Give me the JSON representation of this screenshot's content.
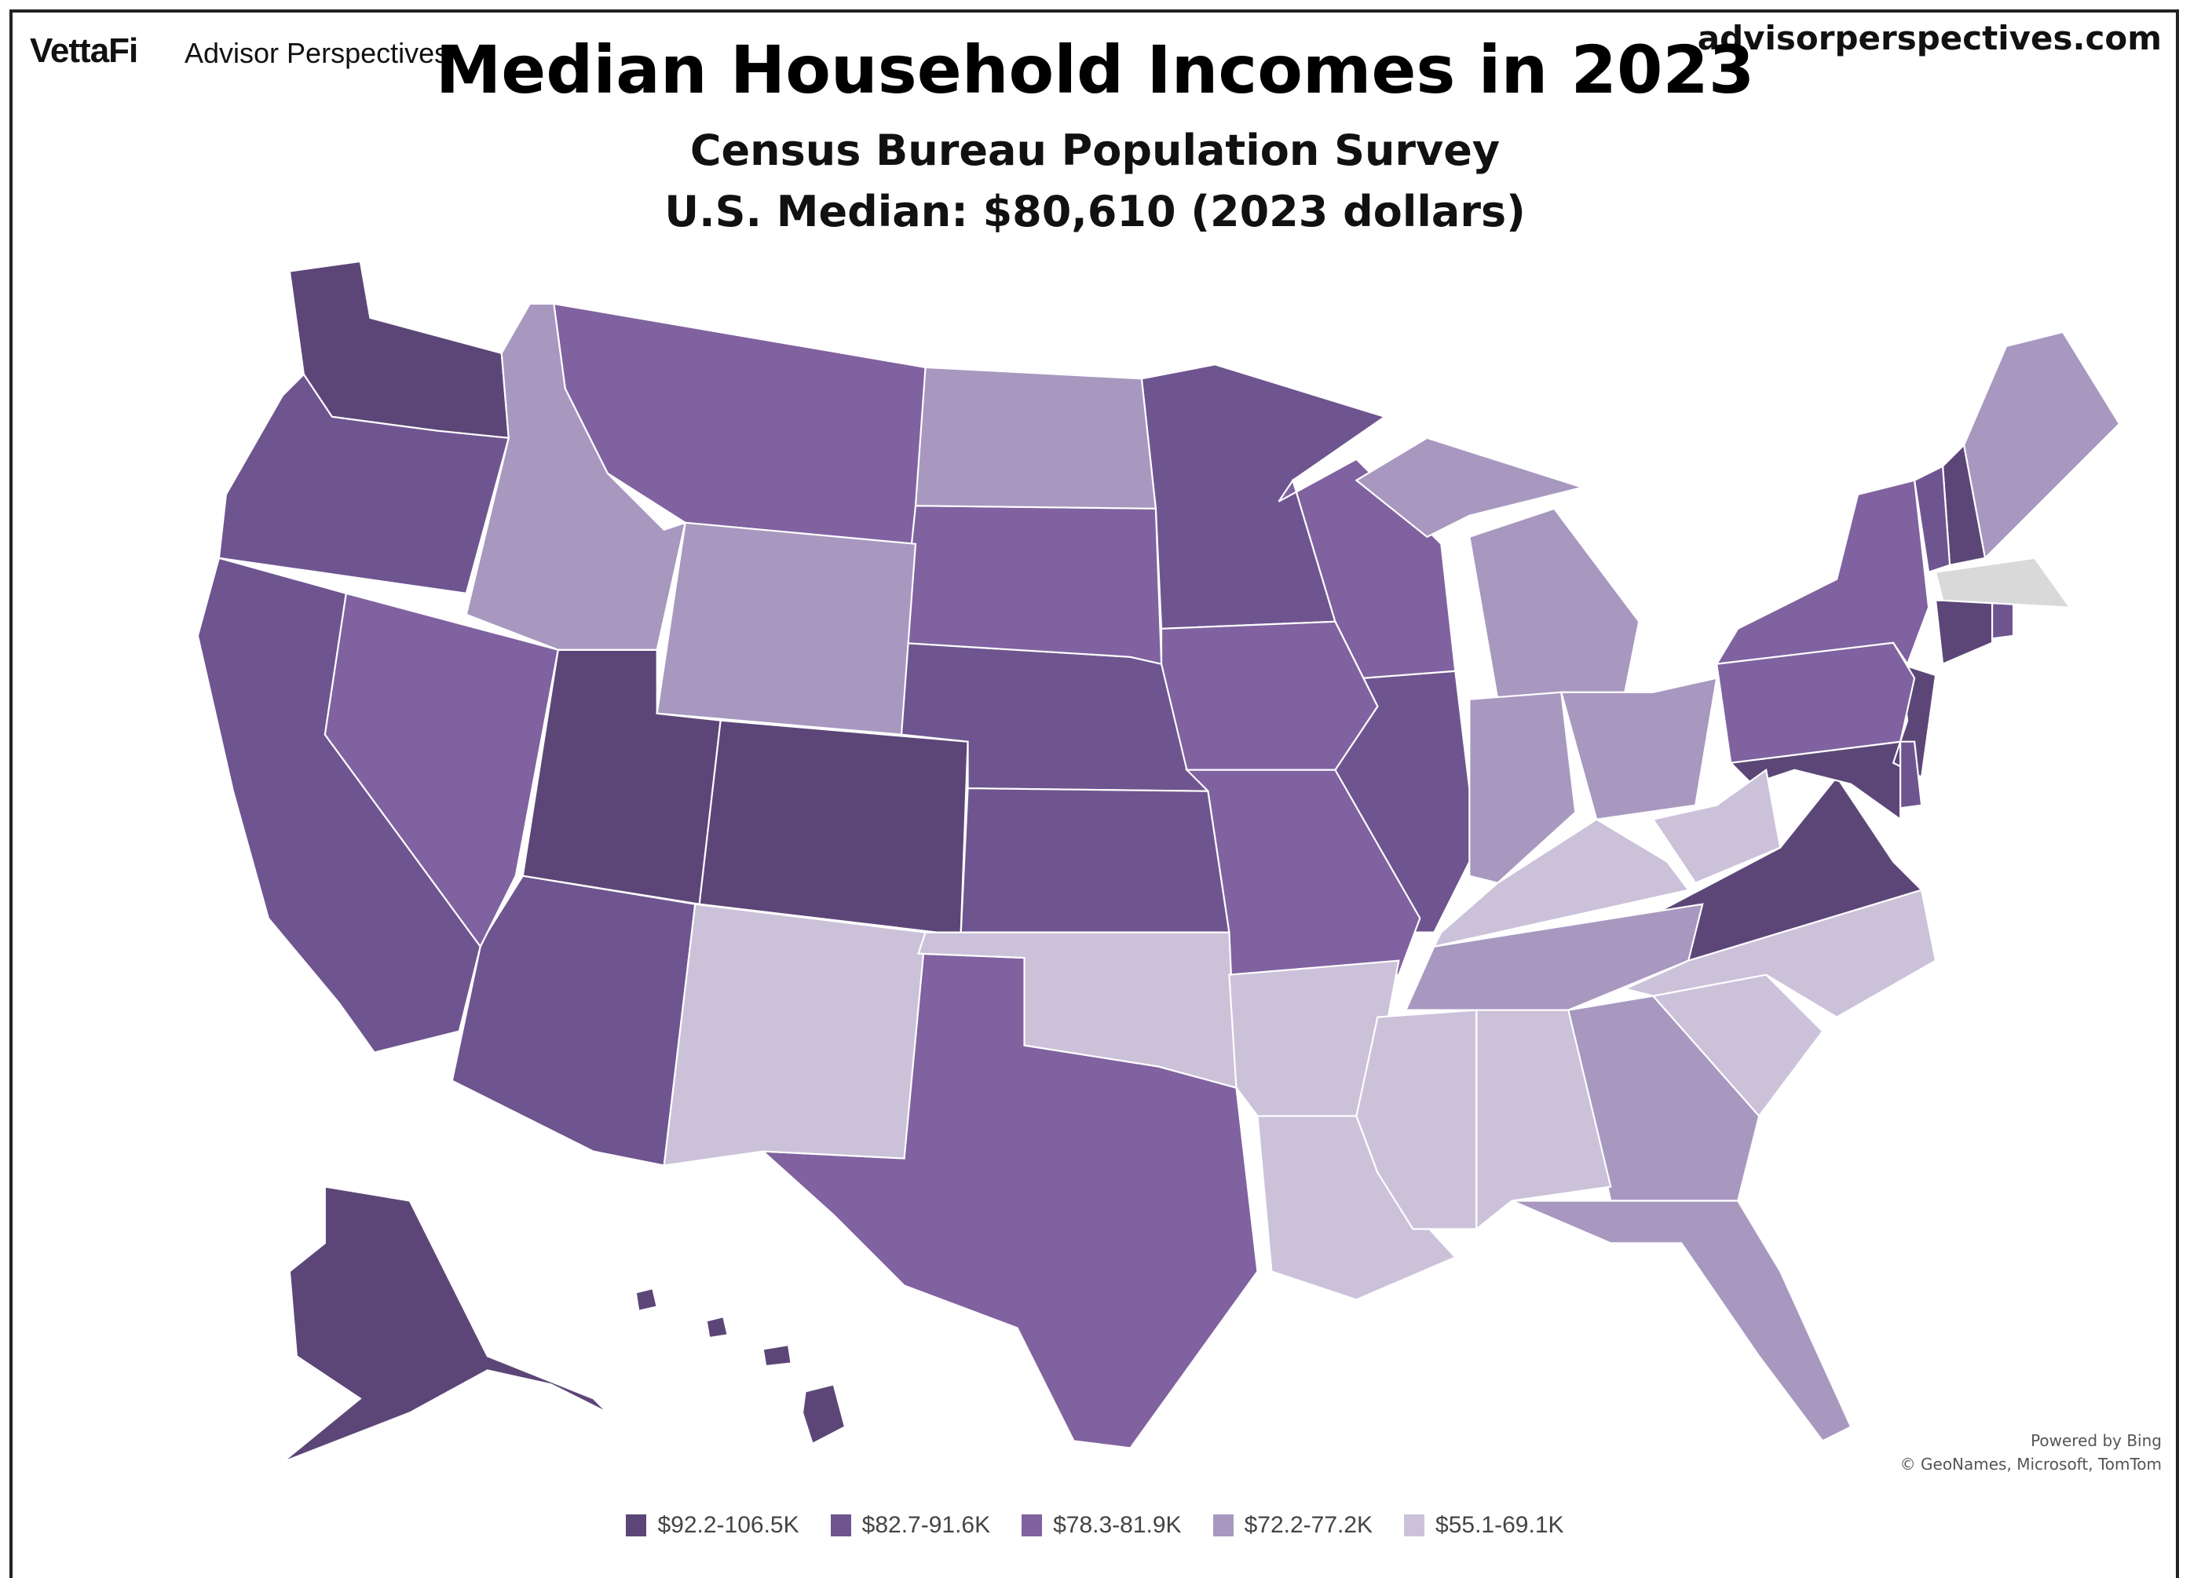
{
  "header": {
    "logo": "VettaFi",
    "brand": "Advisor Perspectives",
    "site": "advisorperspectives.com",
    "title": "Median Household Incomes in 2023",
    "subtitle": "Census Bureau Population Survey",
    "subtitle2": "U.S. Median: $80,610 (2023 dollars)"
  },
  "attribution": {
    "line1": "Powered by Bing",
    "line2": "© GeoNames, Microsoft, TomTom"
  },
  "legend": [
    {
      "label": "$92.2-106.5K",
      "color": "#5c4677"
    },
    {
      "label": "$82.7-91.6K",
      "color": "#6e5590"
    },
    {
      "label": "$78.3-81.9K",
      "color": "#8062a0"
    },
    {
      "label": "$72.2-77.2K",
      "color": "#a898c0"
    },
    {
      "label": "$55.1-69.1K",
      "color": "#cbc2da"
    }
  ],
  "no_data_color": "#d9d9d9",
  "chart_data": {
    "type": "choropleth",
    "region": "United States",
    "states": [
      {
        "state": "WA",
        "bin": 0
      },
      {
        "state": "UT",
        "bin": 0
      },
      {
        "state": "CO",
        "bin": 0
      },
      {
        "state": "VA",
        "bin": 0
      },
      {
        "state": "MD",
        "bin": 0
      },
      {
        "state": "NH",
        "bin": 0
      },
      {
        "state": "CT",
        "bin": 0
      },
      {
        "state": "AK",
        "bin": 0
      },
      {
        "state": "HI",
        "bin": 0
      },
      {
        "state": "NJ",
        "bin": 0
      },
      {
        "state": "CA",
        "bin": 1
      },
      {
        "state": "OR",
        "bin": 1
      },
      {
        "state": "AZ",
        "bin": 1
      },
      {
        "state": "NE",
        "bin": 1
      },
      {
        "state": "KS",
        "bin": 1
      },
      {
        "state": "MN",
        "bin": 1
      },
      {
        "state": "IL",
        "bin": 1
      },
      {
        "state": "VT",
        "bin": 1
      },
      {
        "state": "DE",
        "bin": 1
      },
      {
        "state": "RI",
        "bin": 1
      },
      {
        "state": "MT",
        "bin": 2
      },
      {
        "state": "NV",
        "bin": 2
      },
      {
        "state": "SD",
        "bin": 2
      },
      {
        "state": "WI",
        "bin": 2
      },
      {
        "state": "IA",
        "bin": 2
      },
      {
        "state": "MO",
        "bin": 2
      },
      {
        "state": "TX",
        "bin": 2
      },
      {
        "state": "NY",
        "bin": 2
      },
      {
        "state": "PA",
        "bin": 2
      },
      {
        "state": "ID",
        "bin": 3
      },
      {
        "state": "WY",
        "bin": 3
      },
      {
        "state": "ND",
        "bin": 3
      },
      {
        "state": "MI",
        "bin": 3
      },
      {
        "state": "IN",
        "bin": 3
      },
      {
        "state": "OH",
        "bin": 3
      },
      {
        "state": "TN",
        "bin": 3
      },
      {
        "state": "GA",
        "bin": 3
      },
      {
        "state": "FL",
        "bin": 3
      },
      {
        "state": "ME",
        "bin": 3
      },
      {
        "state": "NM",
        "bin": 4
      },
      {
        "state": "OK",
        "bin": 4
      },
      {
        "state": "AR",
        "bin": 4
      },
      {
        "state": "LA",
        "bin": 4
      },
      {
        "state": "MS",
        "bin": 4
      },
      {
        "state": "AL",
        "bin": 4
      },
      {
        "state": "SC",
        "bin": 4
      },
      {
        "state": "NC",
        "bin": 4
      },
      {
        "state": "KY",
        "bin": 4
      },
      {
        "state": "WV",
        "bin": 4
      },
      {
        "state": "MA",
        "bin": null
      }
    ]
  }
}
